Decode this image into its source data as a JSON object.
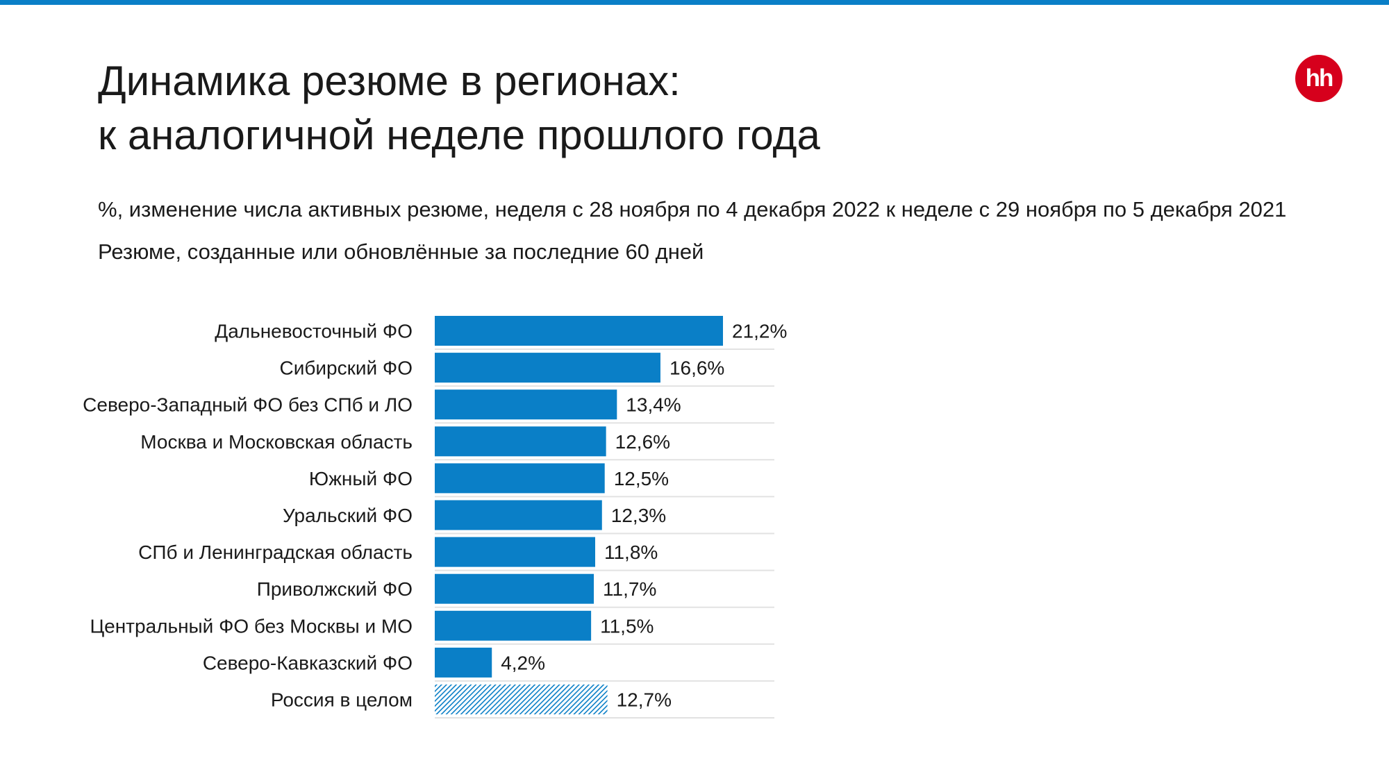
{
  "header": {
    "title_line1": "Динамика резюме в регионах:",
    "title_line2": "к аналогичной неделе прошлого года",
    "subtitle_line1": "%, изменение числа активных резюме, неделя с 28 ноября по 4 декабря 2022 к неделе с 29 ноября по 5 декабря 2021",
    "subtitle_line2": "Резюме, созданные или обновлённые за последние 60 дней",
    "logo_text": "hh"
  },
  "colors": {
    "accent": "#0a7fc7",
    "bar": "#0a7fc7",
    "logo": "#d6001c",
    "divider": "#e2e2e2"
  },
  "chart_data": {
    "type": "bar",
    "orientation": "horizontal",
    "categories": [
      "Дальневосточный ФО",
      "Сибирский ФО",
      "Северо-Западный ФО без СПб и ЛО",
      "Москва и Московская область",
      "Южный ФО",
      "Уральский ФО",
      "СПб и Ленинградская область",
      "Приволжский ФО",
      "Центральный ФО без Москвы и МО",
      "Северо-Кавказский ФО",
      "Россия в целом"
    ],
    "values": [
      21.2,
      16.6,
      13.4,
      12.6,
      12.5,
      12.3,
      11.8,
      11.7,
      11.5,
      4.2,
      12.7
    ],
    "value_labels": [
      "21,2%",
      "16,6%",
      "13,4%",
      "12,6%",
      "12,5%",
      "12,3%",
      "11,8%",
      "11,7%",
      "11,5%",
      "4,2%",
      "12,7%"
    ],
    "highlight": "Россия в целом",
    "xlim": [
      0,
      25
    ],
    "grid": false,
    "legend": "none"
  }
}
